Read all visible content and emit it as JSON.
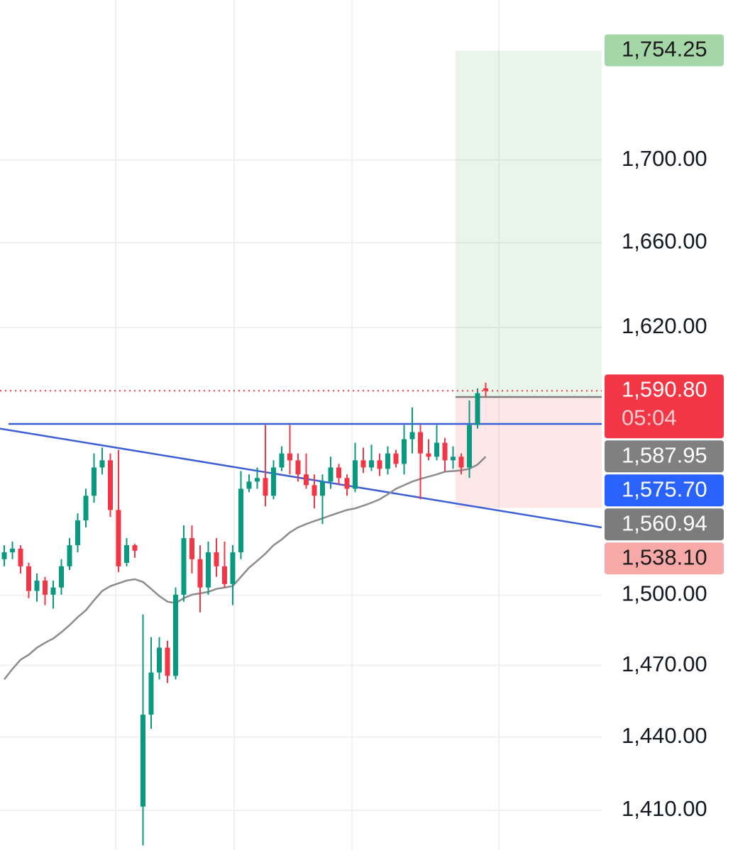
{
  "chart_data": {
    "type": "candlestick",
    "log_scale": true,
    "grid": true,
    "ylim": [
      1394,
      1780
    ],
    "yticks": [
      {
        "value": 1700,
        "label": "1,700.00"
      },
      {
        "value": 1660,
        "label": "1,660.00"
      },
      {
        "value": 1620,
        "label": "1,620.00"
      },
      {
        "value": 1500,
        "label": "1,500.00"
      },
      {
        "value": 1470,
        "label": "1,470.00"
      },
      {
        "value": 1440,
        "label": "1,440.00"
      },
      {
        "value": 1410,
        "label": "1,410.00"
      }
    ],
    "up_color": "#089981",
    "down_color": "#f23645",
    "open": [
      1515.6,
      1518.6,
      1520.2,
      1512.5,
      1501.8,
      1506.3,
      1500.2,
      1503.3,
      1512.5,
      1521.7,
      1532.6,
      1543.5,
      1556.1,
      1559.3,
      1537.2,
      1514.0,
      1521.7,
      1411.5,
      1449.3,
      1467.0,
      1477.5,
      1465.6,
      1500.2,
      1524.8,
      1515.6,
      1503.3,
      1518.6,
      1512.5,
      1504.8,
      1518.6,
      1546.6,
      1549.8,
      1551.4,
      1543.5,
      1556.1,
      1562.4,
      1559.3,
      1553.0,
      1548.2,
      1543.5,
      1549.8,
      1556.1,
      1551.4,
      1546.6,
      1559.3,
      1556.1,
      1559.3,
      1555.5,
      1562.4,
      1557.7,
      1568.8,
      1572.0,
      1562.4,
      1560.9,
      1567.2,
      1559.3,
      1560.9,
      1556.1,
      1575.2,
      1591.9
    ],
    "high": [
      1521.7,
      1523.3,
      1521.7,
      1514.0,
      1509.4,
      1507.9,
      1506.3,
      1515.6,
      1524.8,
      1535.7,
      1546.6,
      1562.4,
      1565.0,
      1562.4,
      1564.0,
      1524.8,
      1522.3,
      1491.7,
      1482.0,
      1482.0,
      1480.5,
      1503.3,
      1530.4,
      1530.4,
      1521.7,
      1523.3,
      1524.8,
      1523.3,
      1521.7,
      1554.5,
      1553.0,
      1556.1,
      1575.2,
      1559.3,
      1565.6,
      1575.2,
      1562.4,
      1562.4,
      1553.0,
      1553.0,
      1560.9,
      1557.7,
      1553.0,
      1567.2,
      1565.0,
      1566.3,
      1562.4,
      1565.6,
      1564.0,
      1575.2,
      1583.2,
      1575.2,
      1568.8,
      1575.2,
      1569.4,
      1565.6,
      1562.4,
      1586.4,
      1591.9,
      1594.5
    ],
    "low": [
      1512.5,
      1515.6,
      1509.4,
      1498.7,
      1497.2,
      1495.7,
      1494.2,
      1500.2,
      1510.9,
      1518.6,
      1529.5,
      1540.4,
      1553.0,
      1534.1,
      1510.0,
      1512.5,
      1516.2,
      1395.8,
      1443.4,
      1464.1,
      1462.6,
      1464.1,
      1497.2,
      1509.4,
      1492.6,
      1500.2,
      1507.9,
      1503.3,
      1495.7,
      1515.6,
      1545.1,
      1546.6,
      1538.8,
      1541.9,
      1554.5,
      1553.0,
      1549.8,
      1546.6,
      1537.9,
      1531.0,
      1546.6,
      1548.2,
      1543.5,
      1545.1,
      1553.6,
      1554.5,
      1552.3,
      1553.0,
      1556.1,
      1553.0,
      1562.4,
      1541.9,
      1559.3,
      1559.3,
      1554.5,
      1555.5,
      1553.0,
      1551.4,
      1573.6,
      1588.1
    ],
    "close": [
      1518.6,
      1520.2,
      1512.5,
      1501.8,
      1506.3,
      1500.2,
      1503.3,
      1512.5,
      1521.7,
      1532.6,
      1543.5,
      1556.1,
      1559.3,
      1537.2,
      1512.5,
      1521.7,
      1519.3,
      1449.3,
      1467.0,
      1477.5,
      1465.6,
      1500.2,
      1524.8,
      1515.6,
      1503.3,
      1518.6,
      1512.5,
      1504.8,
      1518.6,
      1546.6,
      1549.8,
      1551.4,
      1543.5,
      1556.1,
      1562.4,
      1559.3,
      1553.0,
      1548.2,
      1543.5,
      1549.8,
      1556.1,
      1551.4,
      1546.6,
      1559.3,
      1556.1,
      1559.3,
      1555.5,
      1562.4,
      1557.7,
      1568.8,
      1572.0,
      1562.4,
      1560.9,
      1567.2,
      1559.3,
      1560.9,
      1556.1,
      1575.2,
      1589.7,
      1590.8
    ],
    "moving_average": {
      "color": "#8c8c8c",
      "values": [
        1464.1,
        1468.5,
        1472.4,
        1474.5,
        1477.5,
        1479.6,
        1481.4,
        1484.1,
        1487.1,
        1490.5,
        1493.5,
        1497.8,
        1501.8,
        1503.9,
        1505.1,
        1506.3,
        1506.9,
        1505.7,
        1502.7,
        1499.6,
        1497.2,
        1496.6,
        1498.7,
        1500.2,
        1500.8,
        1501.4,
        1502.7,
        1503.3,
        1503.9,
        1507.9,
        1511.9,
        1514.9,
        1518.0,
        1521.7,
        1524.2,
        1527.3,
        1529.5,
        1531.0,
        1532.3,
        1533.5,
        1534.8,
        1536.0,
        1537.2,
        1537.9,
        1539.1,
        1540.4,
        1541.9,
        1544.1,
        1546.6,
        1548.2,
        1549.8,
        1551.0,
        1552.0,
        1553.0,
        1554.2,
        1554.5,
        1554.8,
        1555.5,
        1557.4,
        1560.94
      ]
    },
    "trendline": {
      "color": "#3d5fd6",
      "values": [
        1573.6,
        1529.5
      ]
    },
    "price_labels": [
      {
        "value": 1754.25,
        "label": "1,754.25",
        "color": "#a5d6a7",
        "text_color": "#1b1b1b"
      },
      {
        "value": 1590.8,
        "label": "1,590.80",
        "color": "#f23645",
        "text_color": "#ffffff",
        "countdown": "05:04"
      },
      {
        "value": 1587.95,
        "label": "1,587.95",
        "color": "#808080",
        "text_color": "#ffffff"
      },
      {
        "value": 1575.7,
        "label": "1,575.70",
        "color": "#2962ff",
        "text_color": "#ffffff"
      },
      {
        "value": 1560.94,
        "label": "1,560.94",
        "color": "#7c7c7c",
        "text_color": "#ffffff"
      },
      {
        "value": 1538.1,
        "label": "1,538.10",
        "color": "#f7a9a7",
        "text_color": "#1b1b1b"
      }
    ]
  }
}
